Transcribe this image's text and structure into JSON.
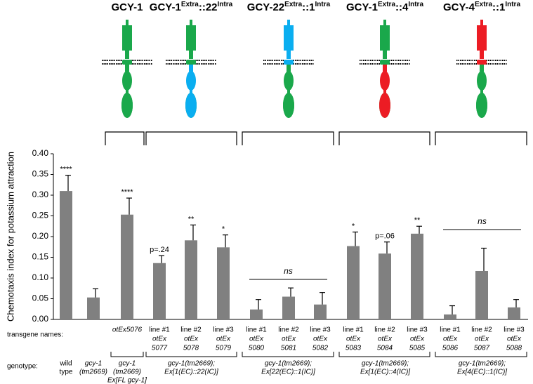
{
  "chart_data": {
    "type": "bar",
    "constructs": [
      {
        "name": "GCY-1",
        "ext_color": "#1aa84b",
        "int_color": "#1aa84b"
      },
      {
        "name": "GCY-1",
        "sup1": "Extra",
        "mid": "::22",
        "sup2": "Intra",
        "ext_color": "#1aa84b",
        "int_color": "#0aaef0"
      },
      {
        "name": "GCY-22",
        "sup1": "Extra",
        "mid": "::1",
        "sup2": "Intra",
        "ext_color": "#0aaef0",
        "int_color": "#1aa84b"
      },
      {
        "name": "GCY-1",
        "sup1": "Extra",
        "mid": "::4",
        "sup2": "Intra",
        "ext_color": "#1aa84b",
        "int_color": "#ec1c24"
      },
      {
        "name": "GCY-4",
        "sup1": "Extra",
        "mid": "::1",
        "sup2": "Intra",
        "ext_color": "#ec1c24",
        "int_color": "#1aa84b"
      }
    ],
    "y_label": "Chemotaxis index for potassium attraction",
    "values": [
      0.31,
      0.053,
      0.253,
      0.136,
      0.191,
      0.174,
      0.024,
      0.055,
      0.036,
      0.177,
      0.159,
      0.207,
      0.012,
      0.117,
      0.029
    ],
    "errors": [
      0.038,
      0.021,
      0.04,
      0.018,
      0.037,
      0.03,
      0.024,
      0.021,
      0.029,
      0.034,
      0.028,
      0.018,
      0.021,
      0.055,
      0.019
    ],
    "color": "#808080",
    "annotations": [
      "****",
      null,
      "****",
      "p=.24",
      "**",
      "*",
      null,
      null,
      null,
      "*",
      "p=.06",
      "**",
      null,
      null,
      null
    ],
    "group_annotations": [
      "ns",
      "ns"
    ],
    "ylim": [
      0,
      0.4
    ],
    "yticks": [
      {
        "value": 0,
        "label": "0.00"
      },
      {
        "value": 0.05,
        "label": "0.05"
      },
      {
        "value": 0.1,
        "label": "0.10"
      },
      {
        "value": 0.15,
        "label": "0.15"
      },
      {
        "value": 0.2,
        "label": "0.20"
      },
      {
        "value": 0.25,
        "label": "0.25"
      },
      {
        "value": 0.3,
        "label": "0.30"
      },
      {
        "value": 0.35,
        "label": "0.35"
      },
      {
        "value": 0.4,
        "label": "0.40"
      }
    ],
    "transgene_label": "transgene names:",
    "transgene_names": [
      null,
      null,
      [
        "otEx5076"
      ],
      [
        "line #1",
        "otEx",
        "5077"
      ],
      [
        "line #2",
        "otEx",
        "5078"
      ],
      [
        "line #3",
        "otEx",
        "5079"
      ],
      [
        "line #1",
        "otEx",
        "5080"
      ],
      [
        "line #2",
        "otEx",
        "5081"
      ],
      [
        "line #3",
        "otEx",
        "5082"
      ],
      [
        "line #1",
        "otEx",
        "5083"
      ],
      [
        "line #2",
        "otEx",
        "5084"
      ],
      [
        "line #3",
        "otEx",
        "5085"
      ],
      [
        "line #1",
        "otEx",
        "5086"
      ],
      [
        "line #2",
        "otEx",
        "5087"
      ],
      [
        "line #3",
        "otEx",
        "5088"
      ]
    ],
    "genotype_label": "genotype:",
    "genotypes": [
      [
        "wild",
        "type"
      ],
      [
        "gcy-1",
        "(tm2669)"
      ],
      [
        "gcy-1",
        "(tm2669)",
        "Ex[FL gcy-1]"
      ],
      [
        "gcy-1(tm2669);",
        "Ex[1(EC)::22(IC)]"
      ],
      [
        "gcy-1(tm2669);",
        "Ex[22(EC)::1(IC)]"
      ],
      [
        "gcy-1(tm2669);",
        "Ex[1(EC)::4(IC)]"
      ],
      [
        "gcy-1(tm2669);",
        "Ex[4(EC)::1(IC)]"
      ]
    ]
  }
}
